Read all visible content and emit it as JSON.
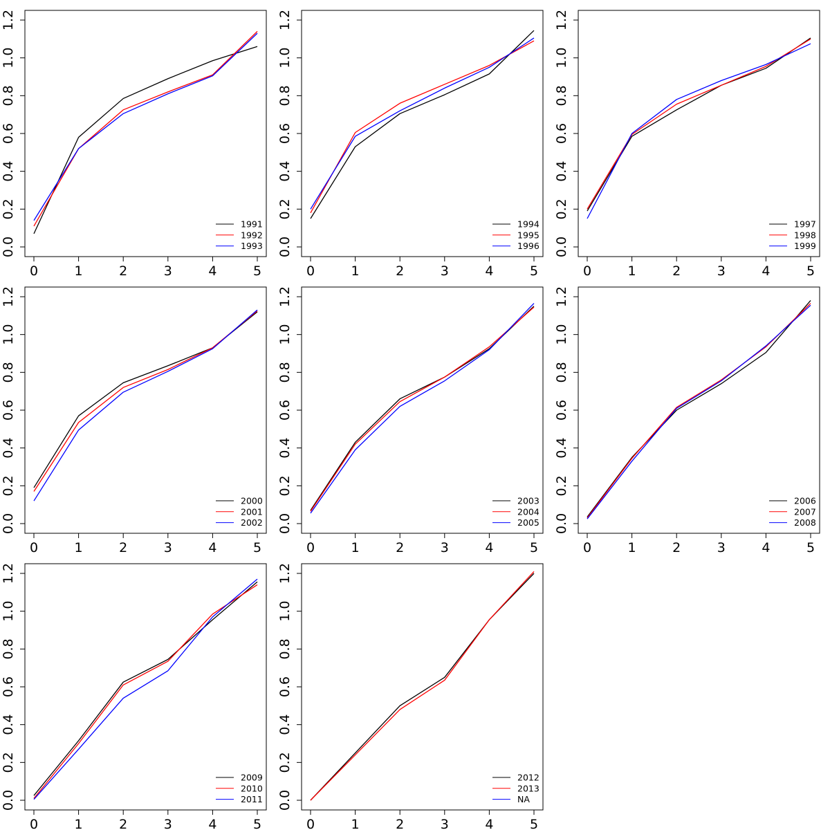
{
  "colors": {
    "series1": "#000000",
    "series2": "#ff0000",
    "series3": "#0000ff"
  },
  "chart_data": [
    {
      "type": "line",
      "x": [
        0,
        1,
        2,
        3,
        4,
        5
      ],
      "xlim": [
        0,
        5
      ],
      "ylim": [
        0,
        1.2
      ],
      "xticks": [
        "0",
        "1",
        "2",
        "3",
        "4",
        "5"
      ],
      "yticks": [
        "0.0",
        "0.2",
        "0.4",
        "0.6",
        "0.8",
        "1.0",
        "1.2"
      ],
      "grid": false,
      "legend_position": "bottom-right",
      "series": [
        {
          "name": "1991",
          "color": "#000000",
          "values": [
            0.07,
            0.58,
            0.785,
            0.89,
            0.985,
            1.06
          ]
        },
        {
          "name": "1992",
          "color": "#ff0000",
          "values": [
            0.11,
            0.52,
            0.725,
            0.82,
            0.91,
            1.14
          ]
        },
        {
          "name": "1993",
          "color": "#0000ff",
          "values": [
            0.14,
            0.52,
            0.705,
            0.81,
            0.905,
            1.13
          ]
        }
      ]
    },
    {
      "type": "line",
      "x": [
        0,
        1,
        2,
        3,
        4,
        5
      ],
      "xlim": [
        0,
        5
      ],
      "ylim": [
        0,
        1.2
      ],
      "xticks": [
        "0",
        "1",
        "2",
        "3",
        "4",
        "5"
      ],
      "yticks": [
        "0.0",
        "0.2",
        "0.4",
        "0.6",
        "0.8",
        "1.0",
        "1.2"
      ],
      "grid": false,
      "legend_position": "bottom-right",
      "series": [
        {
          "name": "1994",
          "color": "#000000",
          "values": [
            0.15,
            0.53,
            0.705,
            0.805,
            0.915,
            1.145
          ]
        },
        {
          "name": "1995",
          "color": "#ff0000",
          "values": [
            0.18,
            0.605,
            0.76,
            0.86,
            0.96,
            1.09
          ]
        },
        {
          "name": "1996",
          "color": "#0000ff",
          "values": [
            0.2,
            0.585,
            0.72,
            0.84,
            0.95,
            1.105
          ]
        }
      ]
    },
    {
      "type": "line",
      "x": [
        0,
        1,
        2,
        3,
        4,
        5
      ],
      "xlim": [
        0,
        5
      ],
      "ylim": [
        0,
        1.2
      ],
      "xticks": [
        "0",
        "1",
        "2",
        "3",
        "4",
        "5"
      ],
      "yticks": [
        "0.0",
        "0.2",
        "0.4",
        "0.6",
        "0.8",
        "1.0",
        "1.2"
      ],
      "grid": false,
      "legend_position": "bottom-right",
      "series": [
        {
          "name": "1997",
          "color": "#000000",
          "values": [
            0.19,
            0.585,
            0.725,
            0.855,
            0.945,
            1.105
          ]
        },
        {
          "name": "1998",
          "color": "#ff0000",
          "values": [
            0.2,
            0.595,
            0.755,
            0.855,
            0.955,
            1.1
          ]
        },
        {
          "name": "1999",
          "color": "#0000ff",
          "values": [
            0.15,
            0.6,
            0.78,
            0.88,
            0.965,
            1.075
          ]
        }
      ]
    },
    {
      "type": "line",
      "x": [
        0,
        1,
        2,
        3,
        4,
        5
      ],
      "xlim": [
        0,
        5
      ],
      "ylim": [
        0,
        1.2
      ],
      "xticks": [
        "0",
        "1",
        "2",
        "3",
        "4",
        "5"
      ],
      "yticks": [
        "0.0",
        "0.2",
        "0.4",
        "0.6",
        "0.8",
        "1.0",
        "1.2"
      ],
      "grid": false,
      "legend_position": "bottom-right",
      "series": [
        {
          "name": "2000",
          "color": "#000000",
          "values": [
            0.19,
            0.57,
            0.745,
            0.835,
            0.93,
            1.12
          ]
        },
        {
          "name": "2001",
          "color": "#ff0000",
          "values": [
            0.17,
            0.535,
            0.72,
            0.815,
            0.93,
            1.125
          ]
        },
        {
          "name": "2002",
          "color": "#0000ff",
          "values": [
            0.12,
            0.495,
            0.695,
            0.805,
            0.925,
            1.13
          ]
        }
      ]
    },
    {
      "type": "line",
      "x": [
        0,
        1,
        2,
        3,
        4,
        5
      ],
      "xlim": [
        0,
        5
      ],
      "ylim": [
        0,
        1.2
      ],
      "xticks": [
        "0",
        "1",
        "2",
        "3",
        "4",
        "5"
      ],
      "yticks": [
        "0.0",
        "0.2",
        "0.4",
        "0.6",
        "0.8",
        "1.0",
        "1.2"
      ],
      "grid": false,
      "legend_position": "bottom-right",
      "series": [
        {
          "name": "2003",
          "color": "#000000",
          "values": [
            0.07,
            0.43,
            0.66,
            0.775,
            0.925,
            1.15
          ]
        },
        {
          "name": "2004",
          "color": "#ff0000",
          "values": [
            0.065,
            0.42,
            0.645,
            0.775,
            0.935,
            1.145
          ]
        },
        {
          "name": "2005",
          "color": "#0000ff",
          "values": [
            0.055,
            0.39,
            0.62,
            0.755,
            0.92,
            1.165
          ]
        }
      ]
    },
    {
      "type": "line",
      "x": [
        0,
        1,
        2,
        3,
        4,
        5
      ],
      "xlim": [
        0,
        5
      ],
      "ylim": [
        0,
        1.2
      ],
      "xticks": [
        "0",
        "1",
        "2",
        "3",
        "4",
        "5"
      ],
      "yticks": [
        "0.0",
        "0.2",
        "0.4",
        "0.6",
        "0.8",
        "1.0",
        "1.2"
      ],
      "grid": false,
      "legend_position": "bottom-right",
      "series": [
        {
          "name": "2006",
          "color": "#000000",
          "values": [
            0.035,
            0.35,
            0.6,
            0.74,
            0.905,
            1.18
          ]
        },
        {
          "name": "2007",
          "color": "#ff0000",
          "values": [
            0.03,
            0.345,
            0.615,
            0.76,
            0.935,
            1.165
          ]
        },
        {
          "name": "2008",
          "color": "#0000ff",
          "values": [
            0.025,
            0.33,
            0.61,
            0.755,
            0.94,
            1.155
          ]
        }
      ]
    },
    {
      "type": "line",
      "x": [
        0,
        1,
        2,
        3,
        4,
        5
      ],
      "xlim": [
        0,
        5
      ],
      "ylim": [
        0,
        1.2
      ],
      "xticks": [
        "0",
        "1",
        "2",
        "3",
        "4",
        "5"
      ],
      "yticks": [
        "0.0",
        "0.2",
        "0.4",
        "0.6",
        "0.8",
        "1.0",
        "1.2"
      ],
      "grid": false,
      "legend_position": "bottom-right",
      "series": [
        {
          "name": "2009",
          "color": "#000000",
          "values": [
            0.025,
            0.315,
            0.625,
            0.745,
            0.955,
            1.155
          ]
        },
        {
          "name": "2010",
          "color": "#ff0000",
          "values": [
            0.01,
            0.3,
            0.61,
            0.735,
            0.985,
            1.14
          ]
        },
        {
          "name": "2011",
          "color": "#0000ff",
          "values": [
            0.005,
            0.27,
            0.54,
            0.685,
            0.97,
            1.17
          ]
        }
      ]
    },
    {
      "type": "line",
      "x": [
        0,
        1,
        2,
        3,
        4,
        5
      ],
      "xlim": [
        0,
        5
      ],
      "ylim": [
        0,
        1.2
      ],
      "xticks": [
        "0",
        "1",
        "2",
        "3",
        "4",
        "5"
      ],
      "yticks": [
        "0.0",
        "0.2",
        "0.4",
        "0.6",
        "0.8",
        "1.0",
        "1.2"
      ],
      "grid": false,
      "legend_position": "bottom-right",
      "series": [
        {
          "name": "2012",
          "color": "#000000",
          "values": [
            0.0,
            0.25,
            0.5,
            0.65,
            0.955,
            1.2
          ]
        },
        {
          "name": "2013",
          "color": "#ff0000",
          "values": [
            0.0,
            0.24,
            0.48,
            0.635,
            0.955,
            1.21
          ]
        },
        {
          "name": "NA",
          "color": "#0000ff",
          "values": [
            null,
            null,
            null,
            null,
            null,
            null
          ]
        }
      ]
    }
  ]
}
